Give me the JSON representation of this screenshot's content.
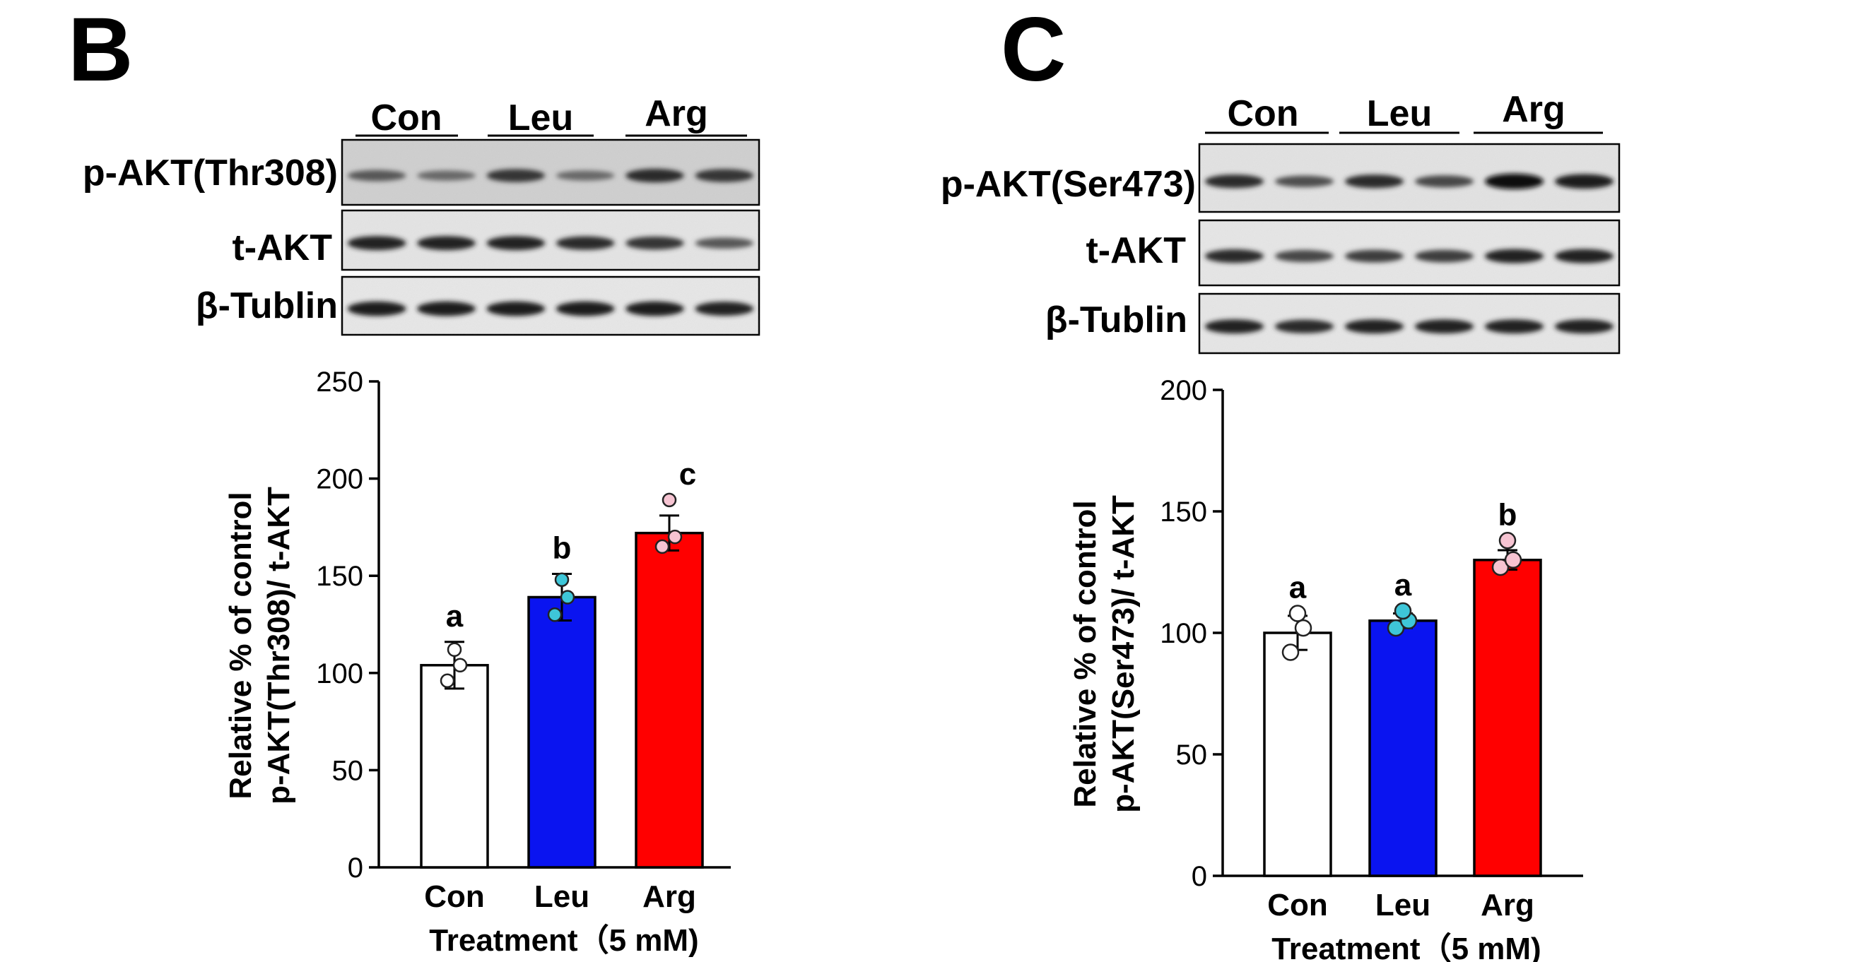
{
  "bar_colors": [
    "#ffffff",
    "#0a14f0",
    "#ff0000"
  ],
  "dot_colors": [
    "#ffffff",
    "#3ec6d8",
    "#f6c4d2"
  ],
  "panels": [
    {
      "id": "B",
      "letter": "B",
      "group_labels": [
        "Con",
        "Leu",
        "Arg"
      ],
      "blots": [
        {
          "label": "p-AKT(Thr308)",
          "intensity": [
            0.55,
            0.45,
            0.75,
            0.45,
            0.8,
            0.75
          ]
        },
        {
          "label": "t-AKT",
          "intensity": [
            0.85,
            0.85,
            0.85,
            0.8,
            0.75,
            0.55
          ]
        },
        {
          "label": "β-Tublin",
          "intensity": [
            0.9,
            0.9,
            0.9,
            0.9,
            0.9,
            0.85
          ]
        }
      ]
    },
    {
      "id": "C",
      "letter": "C",
      "group_labels": [
        "Con",
        "Leu",
        "Arg"
      ],
      "blots": [
        {
          "label": "p-AKT(Ser473)",
          "intensity": [
            0.8,
            0.6,
            0.8,
            0.65,
            1.0,
            0.9
          ]
        },
        {
          "label": "t-AKT",
          "intensity": [
            0.8,
            0.65,
            0.7,
            0.7,
            0.85,
            0.85
          ]
        },
        {
          "label": "β-Tublin",
          "intensity": [
            0.85,
            0.8,
            0.85,
            0.85,
            0.85,
            0.85
          ]
        }
      ]
    }
  ],
  "chart_data": [
    {
      "type": "bar",
      "categories": [
        "Con",
        "Leu",
        "Arg"
      ],
      "values": [
        104,
        139,
        172
      ],
      "errors": [
        12,
        12,
        9
      ],
      "points": [
        [
          96,
          104,
          112
        ],
        [
          130,
          139,
          148
        ],
        [
          165,
          170,
          189
        ]
      ],
      "significance": [
        "a",
        "b",
        "c"
      ],
      "ylabel_lines": [
        "Relative % of control",
        "p-AKT(Thr308)/ t-AKT"
      ],
      "xlabel": "Treatment（5 mM)",
      "ylim": [
        0,
        250
      ],
      "yticks": [
        0,
        50,
        100,
        150,
        200,
        250
      ],
      "grid": false,
      "legend": "none"
    },
    {
      "type": "bar",
      "categories": [
        "Con",
        "Leu",
        "Arg"
      ],
      "values": [
        100,
        105,
        130
      ],
      "errors": [
        7,
        3,
        4
      ],
      "points": [
        [
          92,
          102,
          108
        ],
        [
          102,
          105,
          109
        ],
        [
          127,
          130,
          138
        ]
      ],
      "significance": [
        "a",
        "a",
        "b"
      ],
      "ylabel_lines": [
        "Relative % of control",
        "p-AKT(Ser473)/ t-AKT"
      ],
      "xlabel": "Treatment（5 mM)",
      "ylim": [
        0,
        200
      ],
      "yticks": [
        0,
        50,
        100,
        150,
        200
      ],
      "grid": false,
      "legend": "none"
    }
  ]
}
